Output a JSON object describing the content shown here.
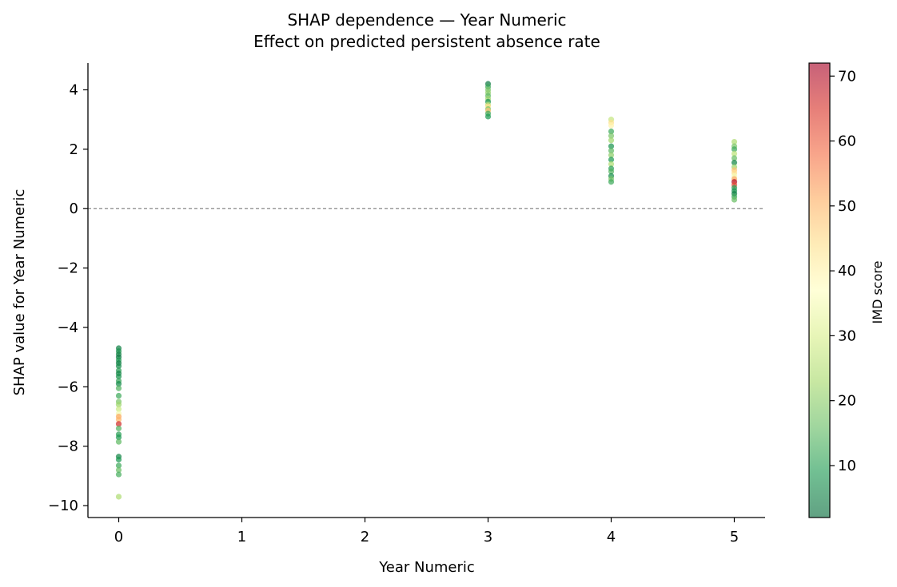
{
  "chart_data": {
    "type": "scatter",
    "title": "SHAP dependence — Year Numeric",
    "subtitle": "Effect on predicted persistent absence rate",
    "xlabel": "Year Numeric",
    "ylabel": "SHAP value for Year Numeric",
    "xlim": [
      -0.25,
      5.25
    ],
    "ylim": [
      -10.4,
      4.9
    ],
    "x_ticks": [
      0,
      1,
      2,
      3,
      4,
      5
    ],
    "y_ticks": [
      4,
      2,
      0,
      -2,
      -4,
      -6,
      -8,
      -10
    ],
    "x_tick_labels": [
      "0",
      "1",
      "2",
      "3",
      "4",
      "5"
    ],
    "y_tick_labels": [
      "4",
      "2",
      "0",
      "−2",
      "−4",
      "−6",
      "−8",
      "−10"
    ],
    "reference_line": {
      "y": 0,
      "style": "dashed",
      "color": "#888888"
    },
    "grid": false,
    "colorbar": {
      "label": "IMD score",
      "range": [
        2,
        72
      ],
      "ticks": [
        10,
        20,
        30,
        40,
        50,
        60,
        70
      ],
      "tick_labels": [
        "10",
        "20",
        "30",
        "40",
        "50",
        "60",
        "70"
      ],
      "colormap": "RdYlGn_r"
    },
    "points": [
      {
        "x": 0,
        "y": -4.7,
        "c": 5
      },
      {
        "x": 0,
        "y": -4.8,
        "c": 8
      },
      {
        "x": 0,
        "y": -4.9,
        "c": 6
      },
      {
        "x": 0,
        "y": -5.0,
        "c": 4
      },
      {
        "x": 0,
        "y": -5.1,
        "c": 9
      },
      {
        "x": 0,
        "y": -5.2,
        "c": 5
      },
      {
        "x": 0,
        "y": -5.3,
        "c": 7
      },
      {
        "x": 0,
        "y": -5.45,
        "c": 10
      },
      {
        "x": 0,
        "y": -5.55,
        "c": 6
      },
      {
        "x": 0,
        "y": -5.65,
        "c": 8
      },
      {
        "x": 0,
        "y": -5.8,
        "c": 11
      },
      {
        "x": 0,
        "y": -5.9,
        "c": 7
      },
      {
        "x": 0,
        "y": -6.05,
        "c": 14
      },
      {
        "x": 0,
        "y": -6.3,
        "c": 12
      },
      {
        "x": 0,
        "y": -6.5,
        "c": 18
      },
      {
        "x": 0,
        "y": -6.6,
        "c": 22
      },
      {
        "x": 0,
        "y": -6.75,
        "c": 28
      },
      {
        "x": 0,
        "y": -6.9,
        "c": 35
      },
      {
        "x": 0,
        "y": -7.0,
        "c": 52
      },
      {
        "x": 0,
        "y": -7.1,
        "c": 50
      },
      {
        "x": 0,
        "y": -7.25,
        "c": 66
      },
      {
        "x": 0,
        "y": -7.4,
        "c": 14
      },
      {
        "x": 0,
        "y": -7.6,
        "c": 10
      },
      {
        "x": 0,
        "y": -7.7,
        "c": 9
      },
      {
        "x": 0,
        "y": -7.85,
        "c": 15
      },
      {
        "x": 0,
        "y": -8.35,
        "c": 6
      },
      {
        "x": 0,
        "y": -8.45,
        "c": 9
      },
      {
        "x": 0,
        "y": -8.65,
        "c": 12
      },
      {
        "x": 0,
        "y": -8.8,
        "c": 16
      },
      {
        "x": 0,
        "y": -8.95,
        "c": 13
      },
      {
        "x": 0,
        "y": -9.7,
        "c": 24
      },
      {
        "x": 3,
        "y": 4.2,
        "c": 4
      },
      {
        "x": 3,
        "y": 4.1,
        "c": 12
      },
      {
        "x": 3,
        "y": 4.0,
        "c": 18
      },
      {
        "x": 3,
        "y": 3.9,
        "c": 20
      },
      {
        "x": 3,
        "y": 3.8,
        "c": 15
      },
      {
        "x": 3,
        "y": 3.7,
        "c": 22
      },
      {
        "x": 3,
        "y": 3.6,
        "c": 8
      },
      {
        "x": 3,
        "y": 3.5,
        "c": 25
      },
      {
        "x": 3,
        "y": 3.45,
        "c": 44
      },
      {
        "x": 3,
        "y": 3.35,
        "c": 18
      },
      {
        "x": 3,
        "y": 3.3,
        "c": 48
      },
      {
        "x": 3,
        "y": 3.2,
        "c": 12
      },
      {
        "x": 3,
        "y": 3.1,
        "c": 9
      },
      {
        "x": 4,
        "y": 3.0,
        "c": 27
      },
      {
        "x": 4,
        "y": 2.9,
        "c": 44
      },
      {
        "x": 4,
        "y": 2.8,
        "c": 40
      },
      {
        "x": 4,
        "y": 2.6,
        "c": 12
      },
      {
        "x": 4,
        "y": 2.45,
        "c": 18
      },
      {
        "x": 4,
        "y": 2.3,
        "c": 22
      },
      {
        "x": 4,
        "y": 2.1,
        "c": 8
      },
      {
        "x": 4,
        "y": 1.95,
        "c": 15
      },
      {
        "x": 4,
        "y": 1.8,
        "c": 20
      },
      {
        "x": 4,
        "y": 1.65,
        "c": 9
      },
      {
        "x": 4,
        "y": 1.5,
        "c": 24
      },
      {
        "x": 4,
        "y": 1.35,
        "c": 10
      },
      {
        "x": 4,
        "y": 1.25,
        "c": 14
      },
      {
        "x": 4,
        "y": 1.1,
        "c": 7
      },
      {
        "x": 4,
        "y": 1.0,
        "c": 18
      },
      {
        "x": 4,
        "y": 0.9,
        "c": 12
      },
      {
        "x": 5,
        "y": 2.25,
        "c": 24
      },
      {
        "x": 5,
        "y": 2.1,
        "c": 18
      },
      {
        "x": 5,
        "y": 2.0,
        "c": 12
      },
      {
        "x": 5,
        "y": 1.85,
        "c": 26
      },
      {
        "x": 5,
        "y": 1.7,
        "c": 16
      },
      {
        "x": 5,
        "y": 1.55,
        "c": 6
      },
      {
        "x": 5,
        "y": 1.4,
        "c": 22
      },
      {
        "x": 5,
        "y": 1.3,
        "c": 48
      },
      {
        "x": 5,
        "y": 1.2,
        "c": 44
      },
      {
        "x": 5,
        "y": 1.1,
        "c": 35
      },
      {
        "x": 5,
        "y": 1.0,
        "c": 52
      },
      {
        "x": 5,
        "y": 0.9,
        "c": 70
      },
      {
        "x": 5,
        "y": 0.8,
        "c": 62
      },
      {
        "x": 5,
        "y": 0.7,
        "c": 10
      },
      {
        "x": 5,
        "y": 0.6,
        "c": 8
      },
      {
        "x": 5,
        "y": 0.5,
        "c": 5
      },
      {
        "x": 5,
        "y": 0.4,
        "c": 12
      },
      {
        "x": 5,
        "y": 0.3,
        "c": 16
      }
    ]
  }
}
